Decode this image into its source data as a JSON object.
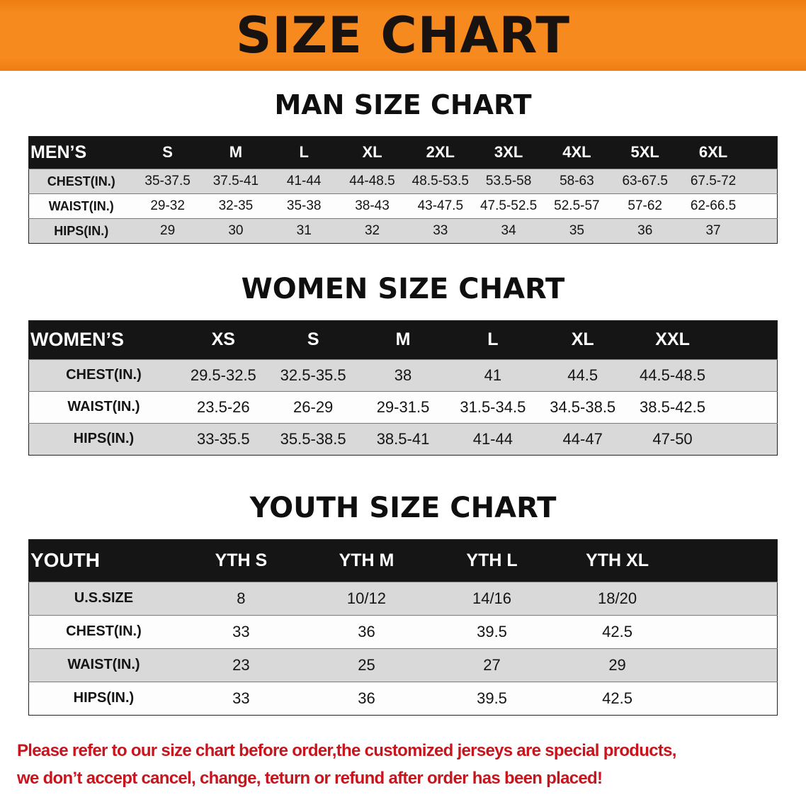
{
  "banner": {
    "title": "SIZE CHART"
  },
  "colors": {
    "banner-orange": "#f68a1e",
    "table-header-black": "#151515",
    "row-gray": "#d9d9d9",
    "disclaimer-red": "#c8141c"
  },
  "sections": [
    {
      "heading": "MAN SIZE CHART",
      "table": {
        "header": [
          "MEN’S",
          "S",
          "M",
          "L",
          "XL",
          "2XL",
          "3XL",
          "4XL",
          "5XL",
          "6XL"
        ],
        "rows": [
          [
            "CHEST(IN.)",
            "35-37.5",
            "37.5-41",
            "41-44",
            "44-48.5",
            "48.5-53.5",
            "53.5-58",
            "58-63",
            "63-67.5",
            "67.5-72"
          ],
          [
            "WAIST(IN.)",
            "29-32",
            "32-35",
            "35-38",
            "38-43",
            "43-47.5",
            "47.5-52.5",
            "52.5-57",
            "57-62",
            "62-66.5"
          ],
          [
            "HIPS(IN.)",
            "29",
            "30",
            "31",
            "32",
            "33",
            "34",
            "35",
            "36",
            "37"
          ]
        ]
      }
    },
    {
      "heading": "WOMEN SIZE CHART",
      "table": {
        "header": [
          "WOMEN’S",
          "XS",
          "S",
          "M",
          "L",
          "XL",
          "XXL"
        ],
        "rows": [
          [
            "CHEST(IN.)",
            "29.5-32.5",
            "32.5-35.5",
            "38",
            "41",
            "44.5",
            "44.5-48.5"
          ],
          [
            "WAIST(IN.)",
            "23.5-26",
            "26-29",
            "29-31.5",
            "31.5-34.5",
            "34.5-38.5",
            "38.5-42.5"
          ],
          [
            "HIPS(IN.)",
            "33-35.5",
            "35.5-38.5",
            "38.5-41",
            "41-44",
            "44-47",
            "47-50"
          ]
        ]
      }
    },
    {
      "heading": "YOUTH SIZE CHART",
      "table": {
        "header": [
          "YOUTH",
          "YTH S",
          "YTH M",
          "YTH L",
          "YTH XL"
        ],
        "rows": [
          [
            "U.S.SIZE",
            "8",
            "10/12",
            "14/16",
            "18/20"
          ],
          [
            "CHEST(IN.)",
            "33",
            "36",
            "39.5",
            "42.5"
          ],
          [
            "WAIST(IN.)",
            "23",
            "25",
            "27",
            "29"
          ],
          [
            "HIPS(IN.)",
            "33",
            "36",
            "39.5",
            "42.5"
          ]
        ]
      }
    }
  ],
  "disclaimer": {
    "line1": "Please refer to our size chart before order,the customized jerseys are special products,",
    "line2": "we don’t accept cancel, change, teturn or refund after order has been placed!"
  }
}
